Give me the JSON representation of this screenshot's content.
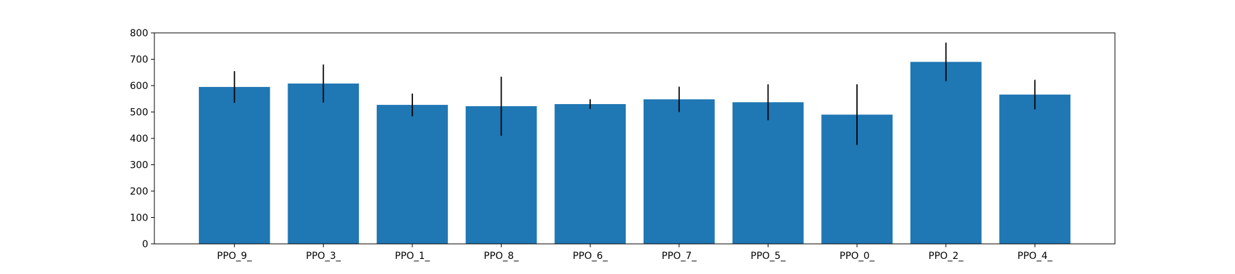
{
  "chart_data": {
    "type": "bar",
    "title": "",
    "xlabel": "",
    "ylabel": "",
    "categories": [
      "PPO_9_",
      "PPO_3_",
      "PPO_1_",
      "PPO_8_",
      "PPO_6_",
      "PPO_7_",
      "PPO_5_",
      "PPO_0_",
      "PPO_2_",
      "PPO_4_"
    ],
    "values": [
      595,
      608,
      527,
      522,
      530,
      548,
      537,
      490,
      690,
      566
    ],
    "errors": [
      60,
      72,
      43,
      112,
      18,
      48,
      68,
      115,
      73,
      56
    ],
    "ylim": [
      0,
      800
    ],
    "yticks": [
      0,
      100,
      200,
      300,
      400,
      500,
      600,
      700,
      800
    ],
    "grid": false,
    "bar_color": "#1f77b4",
    "error_color": "#000000"
  }
}
